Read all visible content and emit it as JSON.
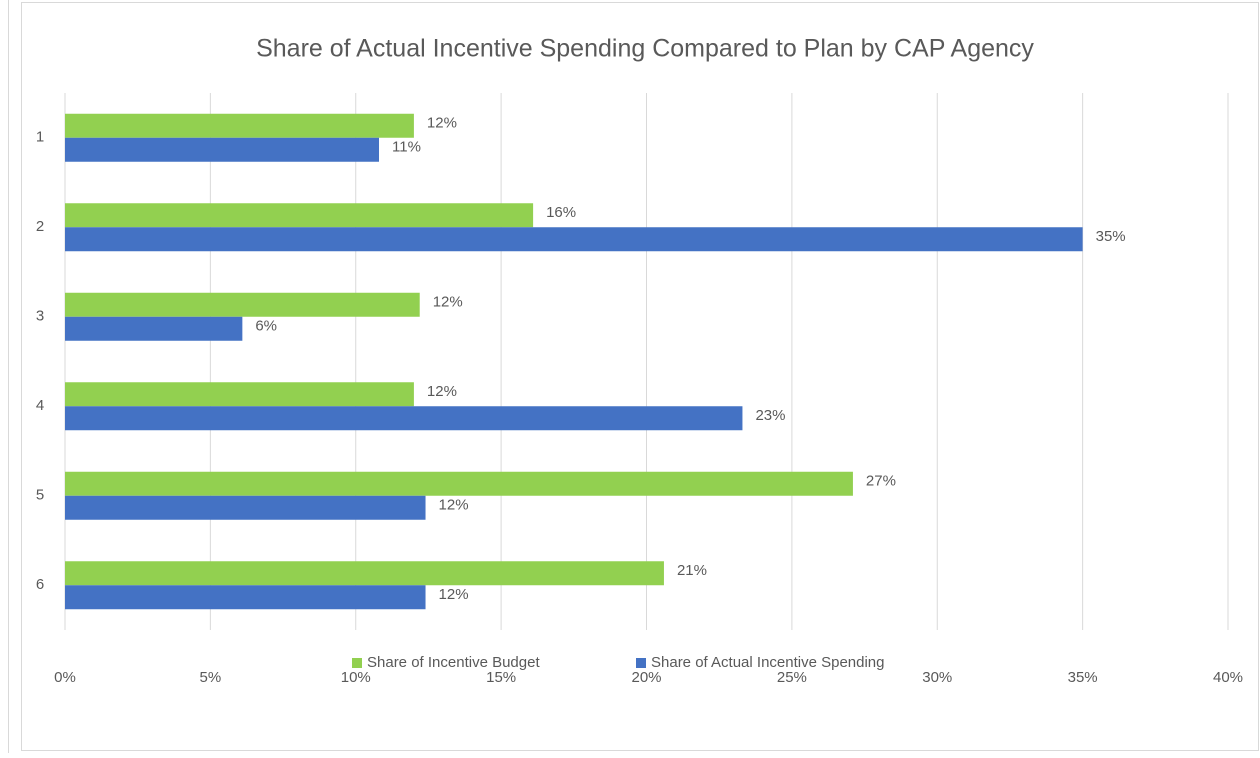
{
  "chart_data": {
    "type": "barh",
    "title": "Share of Actual Incentive Spending Compared to Plan by CAP Agency",
    "categories": [
      "1",
      "2",
      "3",
      "4",
      "5",
      "6"
    ],
    "series": [
      {
        "name": "Share of Incentive Budget",
        "color": "#92d050",
        "values": [
          12.0,
          16.1,
          12.2,
          12.0,
          27.1,
          20.6
        ],
        "value_labels": [
          "12%",
          "16%",
          "12%",
          "12%",
          "27%",
          "21%"
        ]
      },
      {
        "name": "Share of Actual Incentive Spending",
        "color": "#4472c4",
        "values": [
          10.8,
          35.0,
          6.1,
          23.3,
          12.4,
          12.4
        ],
        "value_labels": [
          "11%",
          "35%",
          "6%",
          "23%",
          "12%",
          "12%"
        ]
      }
    ],
    "xlim": [
      0,
      40
    ],
    "xticks": [
      {
        "value": 0,
        "label": "0%"
      },
      {
        "value": 5,
        "label": "5%"
      },
      {
        "value": 10,
        "label": "10%"
      },
      {
        "value": 15,
        "label": "15%"
      },
      {
        "value": 20,
        "label": "20%"
      },
      {
        "value": 25,
        "label": "25%"
      },
      {
        "value": 30,
        "label": "30%"
      },
      {
        "value": 35,
        "label": "35%"
      },
      {
        "value": 40,
        "label": "40%"
      }
    ],
    "grid": true,
    "legend": "bottom"
  }
}
